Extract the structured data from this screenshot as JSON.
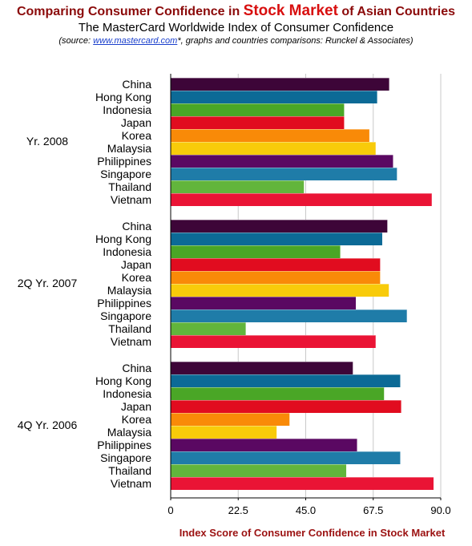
{
  "header": {
    "title_prefix": "Comparing Consumer Confidence in ",
    "title_highlight": "Stock Market",
    "title_suffix": " of Asian Countries",
    "subtitle": "The MasterCard Worldwide Index of Consumer Confidence",
    "source_prefix": "(source: ",
    "source_link": "www.mastercard.com",
    "source_suffix": "*, graphs and countries comparisons: Runckel & Associates)"
  },
  "colors": {
    "title": "#8b0a0a",
    "title_highlight": "#d80f0f",
    "axis_title": "#9b1111",
    "link": "#1a3fcc"
  },
  "chart_data": {
    "type": "bar",
    "orientation": "horizontal",
    "title": "Comparing Consumer Confidence in Stock Market of Asian Countries",
    "subtitle": "The MasterCard Worldwide Index of Consumer Confidence",
    "xlabel": "Index Score of Consumer Confidence in Stock Market",
    "ylabel": "",
    "xlim": [
      0,
      90
    ],
    "xticks": [
      "0",
      "22.5",
      "45.0",
      "67.5",
      "90.0"
    ],
    "xtick_values": [
      0,
      22.5,
      45,
      67.5,
      90
    ],
    "grid": true,
    "legend": "none",
    "categories": [
      "China",
      "Hong Kong",
      "Indonesia",
      "Japan",
      "Korea",
      "Malaysia",
      "Philippines",
      "Singapore",
      "Thailand",
      "Vietnam"
    ],
    "category_colors": [
      "#3d0538",
      "#0c6a96",
      "#4aa626",
      "#e10c1f",
      "#f98a08",
      "#f8cb0a",
      "#5a0862",
      "#1f7ca8",
      "#62b53c",
      "#ea1435"
    ],
    "groups": [
      {
        "name": "Yr. 2008",
        "values": [
          72.8,
          68.8,
          57.8,
          57.8,
          66.2,
          68.3,
          74.1,
          75.4,
          44.4,
          87.0
        ]
      },
      {
        "name": "2Q Yr. 2007",
        "values": [
          72.2,
          70.5,
          56.5,
          69.8,
          69.8,
          72.7,
          61.7,
          78.7,
          25.0,
          68.3
        ]
      },
      {
        "name": "4Q Yr. 2006",
        "values": [
          60.7,
          76.5,
          71.1,
          76.8,
          39.6,
          35.3,
          62.1,
          76.5,
          58.5,
          87.6
        ]
      }
    ]
  }
}
